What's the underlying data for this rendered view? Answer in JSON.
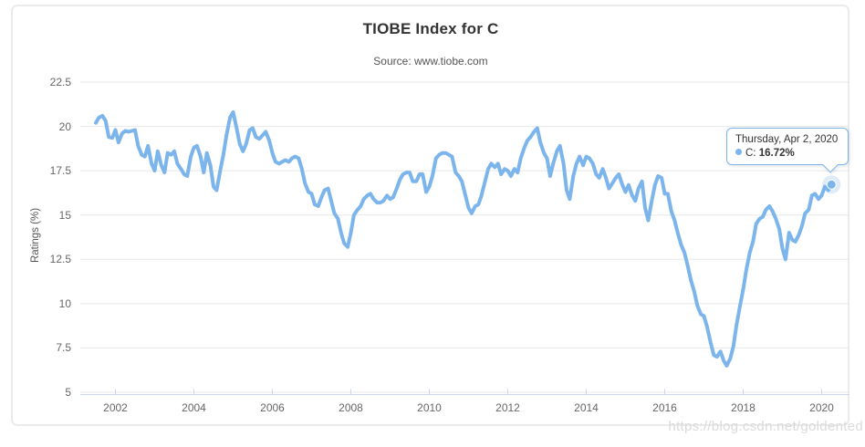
{
  "header": {
    "title": "TIOBE Index for C",
    "subtitle": "Source: www.tiobe.com"
  },
  "watermark": "https://blog.csdn.net/goldented",
  "tooltip": {
    "date": "Thursday, Apr 2, 2020",
    "series_label": "C:",
    "value": "16.72%"
  },
  "chart_data": {
    "type": "line",
    "title": "TIOBE Index for C",
    "subtitle": "Source: www.tiobe.com",
    "series_name": "C",
    "ylabel": "Ratings (%)",
    "ylim": [
      5,
      22.5
    ],
    "yticks": [
      5,
      7.5,
      10,
      12.5,
      15,
      17.5,
      20,
      22.5
    ],
    "ytick_labels": [
      "5",
      "7.5",
      "10",
      "12.5",
      "15",
      "17.5",
      "20",
      "22.5"
    ],
    "xticks": [
      2002,
      2004,
      2006,
      2008,
      2010,
      2012,
      2014,
      2016,
      2018,
      2020
    ],
    "grid": "horizontal",
    "legend": "none",
    "line_color": "#7cb5ec",
    "axis_line_color": "#ccd6eb",
    "grid_color": "#e7e7e7",
    "highlight": {
      "x": 2020.25,
      "y": 16.72,
      "date": "Thursday, Apr 2, 2020",
      "label": "C: 16.72%"
    },
    "points": [
      [
        2001.5,
        20.2
      ],
      [
        2001.58,
        20.5
      ],
      [
        2001.67,
        20.6
      ],
      [
        2001.75,
        20.3
      ],
      [
        2001.83,
        19.4
      ],
      [
        2001.92,
        19.35
      ],
      [
        2002.0,
        19.8
      ],
      [
        2002.08,
        19.1
      ],
      [
        2002.17,
        19.6
      ],
      [
        2002.25,
        19.75
      ],
      [
        2002.33,
        19.7
      ],
      [
        2002.42,
        19.75
      ],
      [
        2002.5,
        19.8
      ],
      [
        2002.58,
        18.9
      ],
      [
        2002.67,
        18.4
      ],
      [
        2002.75,
        18.3
      ],
      [
        2002.83,
        18.9
      ],
      [
        2002.92,
        17.9
      ],
      [
        2003.0,
        17.5
      ],
      [
        2003.08,
        18.6
      ],
      [
        2003.17,
        17.8
      ],
      [
        2003.25,
        17.4
      ],
      [
        2003.33,
        18.5
      ],
      [
        2003.42,
        18.4
      ],
      [
        2003.5,
        18.6
      ],
      [
        2003.58,
        17.9
      ],
      [
        2003.67,
        17.6
      ],
      [
        2003.75,
        17.3
      ],
      [
        2003.83,
        17.2
      ],
      [
        2003.92,
        18.3
      ],
      [
        2004.0,
        18.8
      ],
      [
        2004.08,
        18.9
      ],
      [
        2004.17,
        18.3
      ],
      [
        2004.25,
        17.4
      ],
      [
        2004.33,
        18.5
      ],
      [
        2004.42,
        17.8
      ],
      [
        2004.5,
        16.6
      ],
      [
        2004.58,
        16.4
      ],
      [
        2004.67,
        17.5
      ],
      [
        2004.75,
        18.4
      ],
      [
        2004.83,
        19.5
      ],
      [
        2004.92,
        20.5
      ],
      [
        2005.0,
        20.8
      ],
      [
        2005.08,
        20.0
      ],
      [
        2005.17,
        19.0
      ],
      [
        2005.25,
        18.6
      ],
      [
        2005.33,
        19.0
      ],
      [
        2005.42,
        19.8
      ],
      [
        2005.5,
        19.9
      ],
      [
        2005.58,
        19.4
      ],
      [
        2005.67,
        19.3
      ],
      [
        2005.75,
        19.5
      ],
      [
        2005.83,
        19.7
      ],
      [
        2005.92,
        19.2
      ],
      [
        2006.0,
        18.5
      ],
      [
        2006.08,
        18.0
      ],
      [
        2006.17,
        17.9
      ],
      [
        2006.25,
        18.0
      ],
      [
        2006.33,
        18.1
      ],
      [
        2006.42,
        18.0
      ],
      [
        2006.5,
        18.2
      ],
      [
        2006.58,
        18.3
      ],
      [
        2006.67,
        18.2
      ],
      [
        2006.75,
        17.6
      ],
      [
        2006.83,
        16.8
      ],
      [
        2006.92,
        16.3
      ],
      [
        2007.0,
        16.2
      ],
      [
        2007.08,
        15.6
      ],
      [
        2007.17,
        15.5
      ],
      [
        2007.25,
        16.0
      ],
      [
        2007.33,
        16.4
      ],
      [
        2007.42,
        16.5
      ],
      [
        2007.5,
        15.8
      ],
      [
        2007.58,
        15.1
      ],
      [
        2007.67,
        14.8
      ],
      [
        2007.75,
        14.0
      ],
      [
        2007.83,
        13.4
      ],
      [
        2007.92,
        13.2
      ],
      [
        2008.0,
        14.0
      ],
      [
        2008.08,
        15.0
      ],
      [
        2008.17,
        15.3
      ],
      [
        2008.25,
        15.5
      ],
      [
        2008.33,
        15.9
      ],
      [
        2008.42,
        16.1
      ],
      [
        2008.5,
        16.2
      ],
      [
        2008.58,
        15.9
      ],
      [
        2008.67,
        15.7
      ],
      [
        2008.75,
        15.7
      ],
      [
        2008.83,
        15.8
      ],
      [
        2008.92,
        16.1
      ],
      [
        2009.0,
        15.9
      ],
      [
        2009.08,
        16.0
      ],
      [
        2009.17,
        16.5
      ],
      [
        2009.25,
        17.0
      ],
      [
        2009.33,
        17.3
      ],
      [
        2009.42,
        17.4
      ],
      [
        2009.5,
        17.4
      ],
      [
        2009.58,
        16.9
      ],
      [
        2009.67,
        16.9
      ],
      [
        2009.75,
        17.3
      ],
      [
        2009.83,
        17.3
      ],
      [
        2009.92,
        16.3
      ],
      [
        2010.0,
        16.6
      ],
      [
        2010.08,
        17.2
      ],
      [
        2010.17,
        18.2
      ],
      [
        2010.25,
        18.4
      ],
      [
        2010.33,
        18.5
      ],
      [
        2010.42,
        18.5
      ],
      [
        2010.5,
        18.4
      ],
      [
        2010.58,
        18.3
      ],
      [
        2010.67,
        17.4
      ],
      [
        2010.75,
        17.2
      ],
      [
        2010.83,
        16.9
      ],
      [
        2010.92,
        16.1
      ],
      [
        2011.0,
        15.4
      ],
      [
        2011.08,
        15.1
      ],
      [
        2011.17,
        15.5
      ],
      [
        2011.25,
        15.6
      ],
      [
        2011.33,
        16.1
      ],
      [
        2011.42,
        16.9
      ],
      [
        2011.5,
        17.6
      ],
      [
        2011.58,
        17.9
      ],
      [
        2011.67,
        17.7
      ],
      [
        2011.75,
        17.9
      ],
      [
        2011.83,
        17.3
      ],
      [
        2011.92,
        17.6
      ],
      [
        2012.0,
        17.5
      ],
      [
        2012.08,
        17.2
      ],
      [
        2012.17,
        17.6
      ],
      [
        2012.25,
        17.4
      ],
      [
        2012.33,
        18.2
      ],
      [
        2012.42,
        18.8
      ],
      [
        2012.5,
        19.2
      ],
      [
        2012.58,
        19.4
      ],
      [
        2012.67,
        19.7
      ],
      [
        2012.75,
        19.9
      ],
      [
        2012.83,
        19.1
      ],
      [
        2012.92,
        18.5
      ],
      [
        2013.0,
        18.2
      ],
      [
        2013.08,
        17.2
      ],
      [
        2013.17,
        18.0
      ],
      [
        2013.25,
        18.6
      ],
      [
        2013.33,
        18.9
      ],
      [
        2013.42,
        17.9
      ],
      [
        2013.5,
        16.4
      ],
      [
        2013.58,
        15.9
      ],
      [
        2013.67,
        17.2
      ],
      [
        2013.75,
        17.9
      ],
      [
        2013.83,
        18.3
      ],
      [
        2013.92,
        17.8
      ],
      [
        2014.0,
        18.3
      ],
      [
        2014.08,
        18.2
      ],
      [
        2014.17,
        17.9
      ],
      [
        2014.25,
        17.3
      ],
      [
        2014.33,
        17.1
      ],
      [
        2014.42,
        17.6
      ],
      [
        2014.5,
        17.1
      ],
      [
        2014.58,
        16.5
      ],
      [
        2014.67,
        16.8
      ],
      [
        2014.75,
        17.1
      ],
      [
        2014.83,
        17.3
      ],
      [
        2014.92,
        16.7
      ],
      [
        2015.0,
        16.3
      ],
      [
        2015.08,
        16.7
      ],
      [
        2015.17,
        16.1
      ],
      [
        2015.25,
        15.8
      ],
      [
        2015.33,
        16.5
      ],
      [
        2015.42,
        16.9
      ],
      [
        2015.5,
        15.4
      ],
      [
        2015.58,
        14.7
      ],
      [
        2015.67,
        15.8
      ],
      [
        2015.75,
        16.7
      ],
      [
        2015.83,
        17.2
      ],
      [
        2015.92,
        17.1
      ],
      [
        2016.0,
        16.2
      ],
      [
        2016.08,
        16.2
      ],
      [
        2016.17,
        15.2
      ],
      [
        2016.25,
        14.7
      ],
      [
        2016.33,
        14.0
      ],
      [
        2016.42,
        13.3
      ],
      [
        2016.5,
        12.9
      ],
      [
        2016.58,
        12.2
      ],
      [
        2016.67,
        11.3
      ],
      [
        2016.75,
        10.7
      ],
      [
        2016.83,
        9.9
      ],
      [
        2016.92,
        9.4
      ],
      [
        2017.0,
        9.3
      ],
      [
        2017.08,
        8.7
      ],
      [
        2017.17,
        7.8
      ],
      [
        2017.25,
        7.1
      ],
      [
        2017.33,
        7.0
      ],
      [
        2017.42,
        7.3
      ],
      [
        2017.5,
        6.8
      ],
      [
        2017.58,
        6.5
      ],
      [
        2017.67,
        6.9
      ],
      [
        2017.75,
        7.6
      ],
      [
        2017.83,
        8.8
      ],
      [
        2017.92,
        9.9
      ],
      [
        2018.0,
        10.8
      ],
      [
        2018.08,
        11.9
      ],
      [
        2018.17,
        12.9
      ],
      [
        2018.25,
        13.5
      ],
      [
        2018.33,
        14.5
      ],
      [
        2018.42,
        14.8
      ],
      [
        2018.5,
        14.9
      ],
      [
        2018.58,
        15.3
      ],
      [
        2018.67,
        15.5
      ],
      [
        2018.75,
        15.2
      ],
      [
        2018.83,
        14.8
      ],
      [
        2018.92,
        14.2
      ],
      [
        2019.0,
        13.1
      ],
      [
        2019.08,
        12.5
      ],
      [
        2019.17,
        14.0
      ],
      [
        2019.25,
        13.6
      ],
      [
        2019.33,
        13.5
      ],
      [
        2019.42,
        13.9
      ],
      [
        2019.5,
        14.4
      ],
      [
        2019.58,
        15.1
      ],
      [
        2019.67,
        15.3
      ],
      [
        2019.75,
        16.1
      ],
      [
        2019.83,
        16.2
      ],
      [
        2019.92,
        15.9
      ],
      [
        2020.0,
        16.1
      ],
      [
        2020.08,
        16.6
      ],
      [
        2020.17,
        16.4
      ],
      [
        2020.25,
        16.72
      ]
    ]
  }
}
